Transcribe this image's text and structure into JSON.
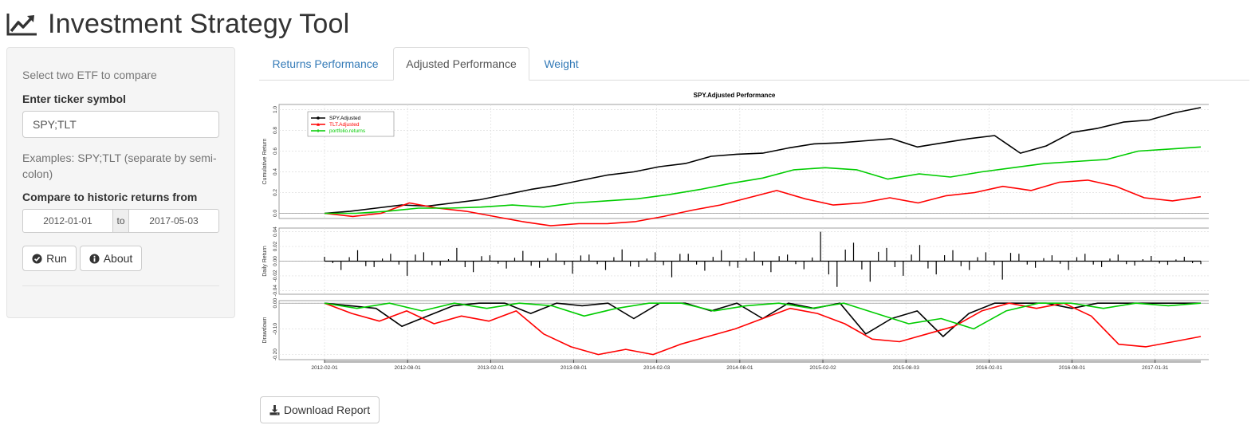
{
  "app": {
    "title": "Investment Strategy Tool",
    "icon": "line-chart-icon"
  },
  "sidebar": {
    "intro": "Select two ETF to compare",
    "ticker_label": "Enter ticker symbol",
    "ticker_value": "SPY;TLT",
    "help_text": "Examples: SPY;TLT (separate by semi-colon)",
    "date_label": "Compare to historic returns from",
    "date_start": "2012-01-01",
    "date_sep": "to",
    "date_end": "2017-05-03",
    "run_label": "Run",
    "about_label": "About"
  },
  "tabs": [
    "Returns Performance",
    "Adjusted Performance",
    "Weight"
  ],
  "active_tab": "Adjusted Performance",
  "download_label": "Download Report",
  "colors": {
    "spy": "#000000",
    "tlt": "#ff0000",
    "portfolio": "#00cc00",
    "link": "#337ab7"
  },
  "chart_data": {
    "type": "line",
    "title": "SPY.Adjusted Performance",
    "x_ticks": [
      "2012-02-01",
      "2012-08-01",
      "2013-02-01",
      "2013-08-01",
      "2014-02-03",
      "2014-08-01",
      "2015-02-02",
      "2015-08-03",
      "2016-02-01",
      "2016-08-01",
      "2017-01-31"
    ],
    "legend": [
      "SPY.Adjusted",
      "TLT.Adjusted",
      "portfolio.returns"
    ],
    "panels": [
      {
        "ylabel": "Cumulative Return",
        "yticks": [
          "1.0",
          "0.8",
          "0.6",
          "0.4",
          "0.2",
          "0.0"
        ],
        "ylim": [
          -0.05,
          1.05
        ],
        "series": [
          {
            "name": "SPY.Adjusted",
            "color": "#000000",
            "values": [
              0.0,
              0.02,
              0.05,
              0.08,
              0.07,
              0.1,
              0.13,
              0.18,
              0.23,
              0.27,
              0.32,
              0.37,
              0.4,
              0.45,
              0.48,
              0.55,
              0.57,
              0.58,
              0.63,
              0.67,
              0.68,
              0.7,
              0.72,
              0.64,
              0.68,
              0.72,
              0.75,
              0.58,
              0.65,
              0.78,
              0.82,
              0.88,
              0.9,
              0.97,
              1.02
            ]
          },
          {
            "name": "TLT.Adjusted",
            "color": "#ff0000",
            "values": [
              0.0,
              -0.03,
              0.0,
              0.1,
              0.05,
              0.02,
              -0.03,
              -0.08,
              -0.12,
              -0.1,
              -0.1,
              -0.08,
              -0.03,
              0.03,
              0.08,
              0.15,
              0.22,
              0.14,
              0.08,
              0.1,
              0.15,
              0.1,
              0.17,
              0.2,
              0.26,
              0.22,
              0.3,
              0.32,
              0.26,
              0.15,
              0.12,
              0.16
            ]
          },
          {
            "name": "portfolio.returns",
            "color": "#00cc00",
            "values": [
              0.0,
              0.0,
              0.02,
              0.05,
              0.05,
              0.06,
              0.08,
              0.06,
              0.1,
              0.12,
              0.14,
              0.18,
              0.23,
              0.29,
              0.34,
              0.42,
              0.44,
              0.42,
              0.33,
              0.38,
              0.35,
              0.4,
              0.44,
              0.48,
              0.5,
              0.52,
              0.6,
              0.62,
              0.64
            ]
          }
        ]
      },
      {
        "ylabel": "Daily Return",
        "yticks": [
          "0.04",
          "0.02",
          "0.00",
          "-0.02",
          "-0.04"
        ],
        "ylim": [
          -0.045,
          0.045
        ],
        "series": [
          {
            "name": "SPY.Adjusted",
            "color": "#000000",
            "values": [
              0.006,
              -0.012,
              0.015,
              -0.008,
              0.01,
              -0.02,
              0.012,
              -0.006,
              0.018,
              -0.015,
              0.008,
              -0.01,
              0.014,
              -0.009,
              0.011,
              -0.017,
              0.009,
              -0.012,
              0.016,
              -0.008,
              0.012,
              -0.022,
              0.01,
              -0.013,
              0.015,
              -0.009,
              0.013,
              -0.015,
              0.009,
              -0.011,
              0.04,
              -0.035,
              0.025,
              -0.028,
              0.018,
              -0.02,
              0.022,
              -0.018,
              0.015,
              -0.012,
              0.012,
              -0.025,
              0.01,
              -0.009,
              0.008,
              -0.012,
              0.01,
              -0.008,
              0.009,
              -0.006,
              0.007,
              -0.005,
              0.006,
              -0.004
            ]
          }
        ]
      },
      {
        "ylabel": "Drawdown",
        "yticks": [
          "0.00",
          "-0.10",
          "-0.20"
        ],
        "ylim": [
          -0.22,
          0.01
        ],
        "series": [
          {
            "name": "SPY.Adjusted",
            "color": "#000000",
            "values": [
              0.0,
              -0.01,
              -0.02,
              -0.09,
              -0.05,
              -0.01,
              0.0,
              0.0,
              -0.04,
              0.0,
              -0.01,
              0.0,
              -0.06,
              0.0,
              0.0,
              -0.03,
              0.0,
              -0.06,
              0.0,
              -0.02,
              0.0,
              -0.12,
              -0.06,
              -0.03,
              -0.13,
              -0.04,
              0.0,
              0.0,
              0.0,
              -0.02,
              0.0,
              0.0,
              0.0,
              0.0,
              0.0
            ]
          },
          {
            "name": "TLT.Adjusted",
            "color": "#ff0000",
            "values": [
              0.0,
              -0.04,
              -0.07,
              -0.03,
              -0.08,
              -0.05,
              -0.07,
              -0.03,
              -0.12,
              -0.17,
              -0.2,
              -0.18,
              -0.2,
              -0.16,
              -0.13,
              -0.1,
              -0.06,
              -0.02,
              -0.04,
              -0.08,
              -0.14,
              -0.15,
              -0.12,
              -0.09,
              -0.03,
              0.0,
              -0.02,
              0.0,
              -0.05,
              -0.16,
              -0.17,
              -0.15,
              -0.13
            ]
          },
          {
            "name": "portfolio.returns",
            "color": "#00cc00",
            "values": [
              0.0,
              -0.02,
              0.0,
              -0.03,
              0.0,
              -0.02,
              0.0,
              -0.01,
              -0.05,
              -0.02,
              0.0,
              0.0,
              -0.03,
              -0.01,
              0.0,
              -0.02,
              0.0,
              -0.04,
              -0.08,
              -0.06,
              -0.1,
              -0.03,
              0.0,
              0.0,
              -0.02,
              0.0,
              -0.01,
              0.0
            ]
          }
        ]
      }
    ]
  }
}
